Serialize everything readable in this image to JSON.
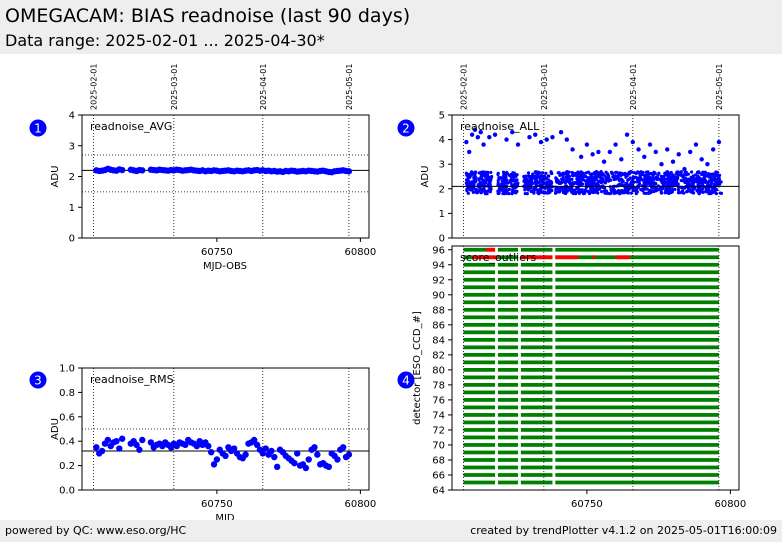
{
  "header": {
    "title": "OMEGACAM: BIAS readnoise (last 90 days)",
    "subtitle": "Data range: 2025-02-01 ... 2025-04-30*"
  },
  "footer": {
    "left": "powered by QC: www.eso.org/HC",
    "right": "created by trendPlotter v4.1.2 on 2025-05-01T16:00:09"
  },
  "date_marks": [
    {
      "label": "2025-02-01",
      "mjd": 60707
    },
    {
      "label": "2025-03-01",
      "mjd": 60735
    },
    {
      "label": "2025-04-01",
      "mjd": 60766
    },
    {
      "label": "2025-05-01",
      "mjd": 60796
    }
  ],
  "colors": {
    "points": "#0000ff",
    "good": "#008000",
    "outlier": "#ff0000",
    "badge": "#0000ff"
  },
  "chart_data": [
    {
      "id": 1,
      "badge": "1",
      "type": "scatter",
      "label": "readnoise_AVG",
      "xlabel": "MJD-OBS",
      "ylabel": "ADU",
      "xlim": [
        60703,
        60803
      ],
      "ylim": [
        0,
        4
      ],
      "xticks": [
        60750,
        60800
      ],
      "yticks": [
        "0",
        "1",
        "2",
        "3",
        "4"
      ],
      "hlines": {
        "solid": [
          2.2
        ],
        "dotted": [
          1.5,
          2.7
        ]
      },
      "x": [
        60708,
        60709,
        60710,
        60711,
        60712,
        60713,
        60714,
        60715,
        60716,
        60717,
        60720,
        60721,
        60722,
        60723,
        60724,
        60727,
        60728,
        60729,
        60730,
        60731,
        60732,
        60733,
        60734,
        60735,
        60736,
        60737,
        60738,
        60739,
        60740,
        60741,
        60742,
        60743,
        60744,
        60745,
        60746,
        60747,
        60748,
        60749,
        60750,
        60751,
        60752,
        60753,
        60754,
        60755,
        60756,
        60757,
        60758,
        60759,
        60760,
        60761,
        60762,
        60763,
        60764,
        60765,
        60766,
        60767,
        60768,
        60769,
        60770,
        60771,
        60772,
        60773,
        60774,
        60775,
        60776,
        60777,
        60778,
        60779,
        60780,
        60781,
        60782,
        60783,
        60784,
        60785,
        60786,
        60787,
        60788,
        60789,
        60790,
        60791,
        60792,
        60793,
        60794,
        60795,
        60796
      ],
      "y": [
        2.2,
        2.18,
        2.19,
        2.21,
        2.25,
        2.22,
        2.2,
        2.19,
        2.23,
        2.21,
        2.22,
        2.2,
        2.18,
        2.21,
        2.2,
        2.22,
        2.21,
        2.2,
        2.22,
        2.21,
        2.2,
        2.19,
        2.21,
        2.2,
        2.22,
        2.21,
        2.19,
        2.2,
        2.21,
        2.22,
        2.2,
        2.19,
        2.18,
        2.2,
        2.17,
        2.19,
        2.18,
        2.2,
        2.19,
        2.17,
        2.18,
        2.19,
        2.2,
        2.18,
        2.17,
        2.19,
        2.18,
        2.17,
        2.19,
        2.2,
        2.18,
        2.2,
        2.21,
        2.19,
        2.2,
        2.18,
        2.19,
        2.17,
        2.18,
        2.16,
        2.17,
        2.15,
        2.18,
        2.17,
        2.19,
        2.18,
        2.16,
        2.17,
        2.18,
        2.17,
        2.19,
        2.18,
        2.17,
        2.16,
        2.18,
        2.19,
        2.17,
        2.15,
        2.14,
        2.17,
        2.18,
        2.19,
        2.2,
        2.18,
        2.17
      ]
    },
    {
      "id": 2,
      "badge": "2",
      "type": "scatter",
      "label": "readnoise_ALL",
      "xlabel": "",
      "ylabel": "ADU",
      "xlim": [
        60703,
        60803
      ],
      "ylim": [
        0,
        5
      ],
      "yticks": [
        "0",
        "1",
        "2",
        "3",
        "4",
        "5"
      ],
      "hlines": {
        "solid": [
          2.1
        ],
        "dotted": []
      },
      "dense_band": {
        "ymin": 1.8,
        "ymax": 2.7,
        "gaps": [
          [
            60717,
            60719
          ],
          [
            60726,
            60728
          ],
          [
            60738,
            60739
          ]
        ]
      },
      "x": [
        60708,
        60709,
        60710,
        60711,
        60712,
        60713,
        60714,
        60716,
        60718,
        60722,
        60724,
        60726,
        60730,
        60732,
        60734,
        60736,
        60738,
        60741,
        60743,
        60745,
        60748,
        60750,
        60752,
        60754,
        60756,
        60758,
        60760,
        60762,
        60764,
        60766,
        60768,
        60770,
        60772,
        60774,
        60776,
        60778,
        60780,
        60782,
        60784,
        60786,
        60788,
        60790,
        60792,
        60794,
        60796
      ],
      "y": [
        3.9,
        3.5,
        4.2,
        4.4,
        4.1,
        4.3,
        3.8,
        4.1,
        4.2,
        4.0,
        4.3,
        3.8,
        4.1,
        4.2,
        3.9,
        4.0,
        4.1,
        4.3,
        4.0,
        3.6,
        3.3,
        3.8,
        3.4,
        3.5,
        3.1,
        3.5,
        3.8,
        3.2,
        4.2,
        3.9,
        3.6,
        3.3,
        3.8,
        3.5,
        3.0,
        3.6,
        3.1,
        3.4,
        2.8,
        3.5,
        3.8,
        3.2,
        3.0,
        3.6,
        3.9
      ]
    },
    {
      "id": 3,
      "badge": "3",
      "type": "scatter",
      "label": "readnoise_RMS",
      "xlabel": "MJD",
      "ylabel": "ADU",
      "xlim": [
        60703,
        60803
      ],
      "ylim": [
        0,
        1
      ],
      "xticks": [
        60750,
        60800
      ],
      "yticks": [
        "0.0",
        "0.2",
        "0.4",
        "0.6",
        "0.8",
        "1.0"
      ],
      "hlines": {
        "solid": [
          0.32
        ],
        "dotted": [
          0.5
        ]
      },
      "x": [
        60708,
        60709,
        60710,
        60711,
        60712,
        60713,
        60714,
        60715,
        60716,
        60717,
        60720,
        60721,
        60722,
        60723,
        60724,
        60727,
        60728,
        60729,
        60730,
        60731,
        60732,
        60733,
        60734,
        60735,
        60736,
        60737,
        60738,
        60739,
        60740,
        60741,
        60742,
        60743,
        60744,
        60745,
        60746,
        60747,
        60748,
        60749,
        60750,
        60751,
        60752,
        60753,
        60754,
        60755,
        60756,
        60757,
        60758,
        60759,
        60760,
        60761,
        60762,
        60763,
        60764,
        60765,
        60766,
        60767,
        60768,
        60769,
        60770,
        60771,
        60772,
        60773,
        60774,
        60775,
        60776,
        60777,
        60778,
        60779,
        60780,
        60781,
        60782,
        60783,
        60784,
        60785,
        60786,
        60787,
        60788,
        60789,
        60790,
        60791,
        60792,
        60793,
        60794,
        60795,
        60796
      ],
      "y": [
        0.35,
        0.3,
        0.32,
        0.38,
        0.41,
        0.36,
        0.39,
        0.4,
        0.34,
        0.42,
        0.38,
        0.4,
        0.37,
        0.33,
        0.41,
        0.39,
        0.35,
        0.37,
        0.38,
        0.36,
        0.39,
        0.37,
        0.35,
        0.38,
        0.36,
        0.39,
        0.38,
        0.37,
        0.41,
        0.39,
        0.38,
        0.36,
        0.4,
        0.37,
        0.39,
        0.36,
        0.31,
        0.21,
        0.25,
        0.33,
        0.3,
        0.28,
        0.35,
        0.32,
        0.34,
        0.3,
        0.27,
        0.26,
        0.29,
        0.38,
        0.39,
        0.41,
        0.37,
        0.33,
        0.3,
        0.34,
        0.29,
        0.32,
        0.27,
        0.19,
        0.33,
        0.31,
        0.28,
        0.26,
        0.24,
        0.22,
        0.3,
        0.2,
        0.21,
        0.18,
        0.25,
        0.33,
        0.35,
        0.29,
        0.21,
        0.22,
        0.2,
        0.19,
        0.3,
        0.28,
        0.25,
        0.33,
        0.35,
        0.27,
        0.29
      ]
    },
    {
      "id": 4,
      "badge": "4",
      "type": "heatmap",
      "label": "score_outliers",
      "xlabel": "",
      "ylabel": "detector [ESO_CCD_#]",
      "xlim": [
        60703,
        60803
      ],
      "ylim": [
        64,
        96.5
      ],
      "xticks": [
        60750,
        60800
      ],
      "yticks": [
        "64",
        "66",
        "68",
        "70",
        "72",
        "74",
        "76",
        "78",
        "80",
        "82",
        "84",
        "86",
        "88",
        "90",
        "92",
        "94",
        "96"
      ],
      "rows_from": 65,
      "rows_to": 96,
      "data_ranges": [
        [
          60707,
          60718
        ],
        [
          60719,
          60726
        ],
        [
          60727,
          60738
        ],
        [
          60739,
          60796
        ]
      ],
      "outliers": [
        {
          "row": 95,
          "x0": 60710,
          "x1": 60719
        },
        {
          "row": 95,
          "x0": 60727,
          "x1": 60738
        },
        {
          "row": 95,
          "x0": 60739,
          "x1": 60747
        },
        {
          "row": 95,
          "x0": 60760,
          "x1": 60765
        },
        {
          "row": 95,
          "x0": 60752,
          "x1": 60753
        },
        {
          "row": 96,
          "x0": 60715,
          "x1": 60718
        }
      ]
    }
  ]
}
